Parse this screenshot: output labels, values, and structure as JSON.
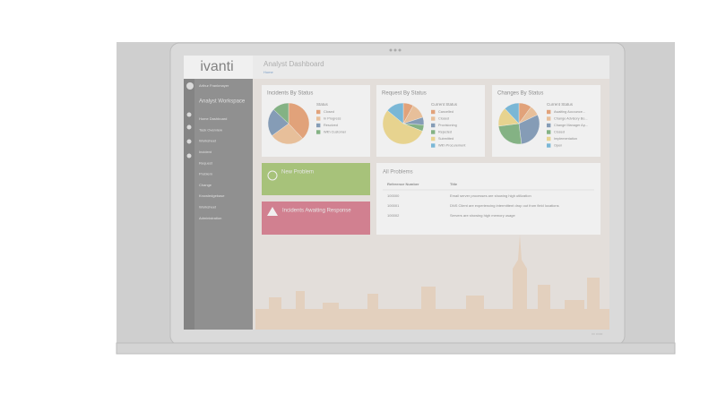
{
  "header": {
    "logo": "ivanti",
    "title": "Analyst Dashboard",
    "breadcrumb": "Home"
  },
  "user": {
    "name": "Arthur Frankmayer",
    "role": "Analyst Workspace"
  },
  "nav": [
    "Home Dashboard",
    "Task Overview",
    "Worksheet",
    "Incident",
    "Request",
    "Problem",
    "Change",
    "Knowledgebase",
    "Worksheet",
    "Administration"
  ],
  "charts": [
    {
      "type": "pie",
      "title": "Incidents By Status",
      "legend_title": "Status",
      "categories": [
        "Closed",
        "In Progress",
        "Resolved",
        "With Customer"
      ],
      "colors": [
        "#e8884a",
        "#f2b47c",
        "#5b7fa6",
        "#5aa05a"
      ],
      "values": [
        38,
        27,
        22,
        13
      ]
    },
    {
      "type": "pie",
      "title": "Request By Status",
      "legend_title": "Current Status",
      "categories": [
        "Cancelled",
        "Closed",
        "Provisioning",
        "Rejected",
        "Submitted",
        "With Procurement"
      ],
      "colors": [
        "#e8884a",
        "#f2b47c",
        "#5b7fa6",
        "#5aa05a",
        "#f2d36b",
        "#4aa8d8"
      ],
      "values": [
        8,
        12,
        6,
        5,
        55,
        14
      ]
    },
    {
      "type": "pie",
      "title": "Changes By Status",
      "legend_title": "Current Status",
      "categories": [
        "Awaiting Accounce...",
        "Change Advisory Bo...",
        "Change Manager Ap...",
        "Closed",
        "Implementation",
        "Open"
      ],
      "colors": [
        "#e8884a",
        "#f2b47c",
        "#5b7fa6",
        "#5aa05a",
        "#f2d36b",
        "#4aa8d8"
      ],
      "values": [
        10,
        8,
        30,
        25,
        15,
        12
      ]
    }
  ],
  "new_problem": "New Problem",
  "awaiting": "Incidents Awaiting Response",
  "all_problems": {
    "title": "All Problems",
    "columns": [
      "Reference Number",
      "Title"
    ],
    "rows": [
      [
        "100000",
        "Email server processes are showing high utilization"
      ],
      [
        "100001",
        "DNS Client are experiencing intermittent drop out from field locations"
      ],
      [
        "100002",
        "Servers are showing high memory usage"
      ]
    ]
  }
}
